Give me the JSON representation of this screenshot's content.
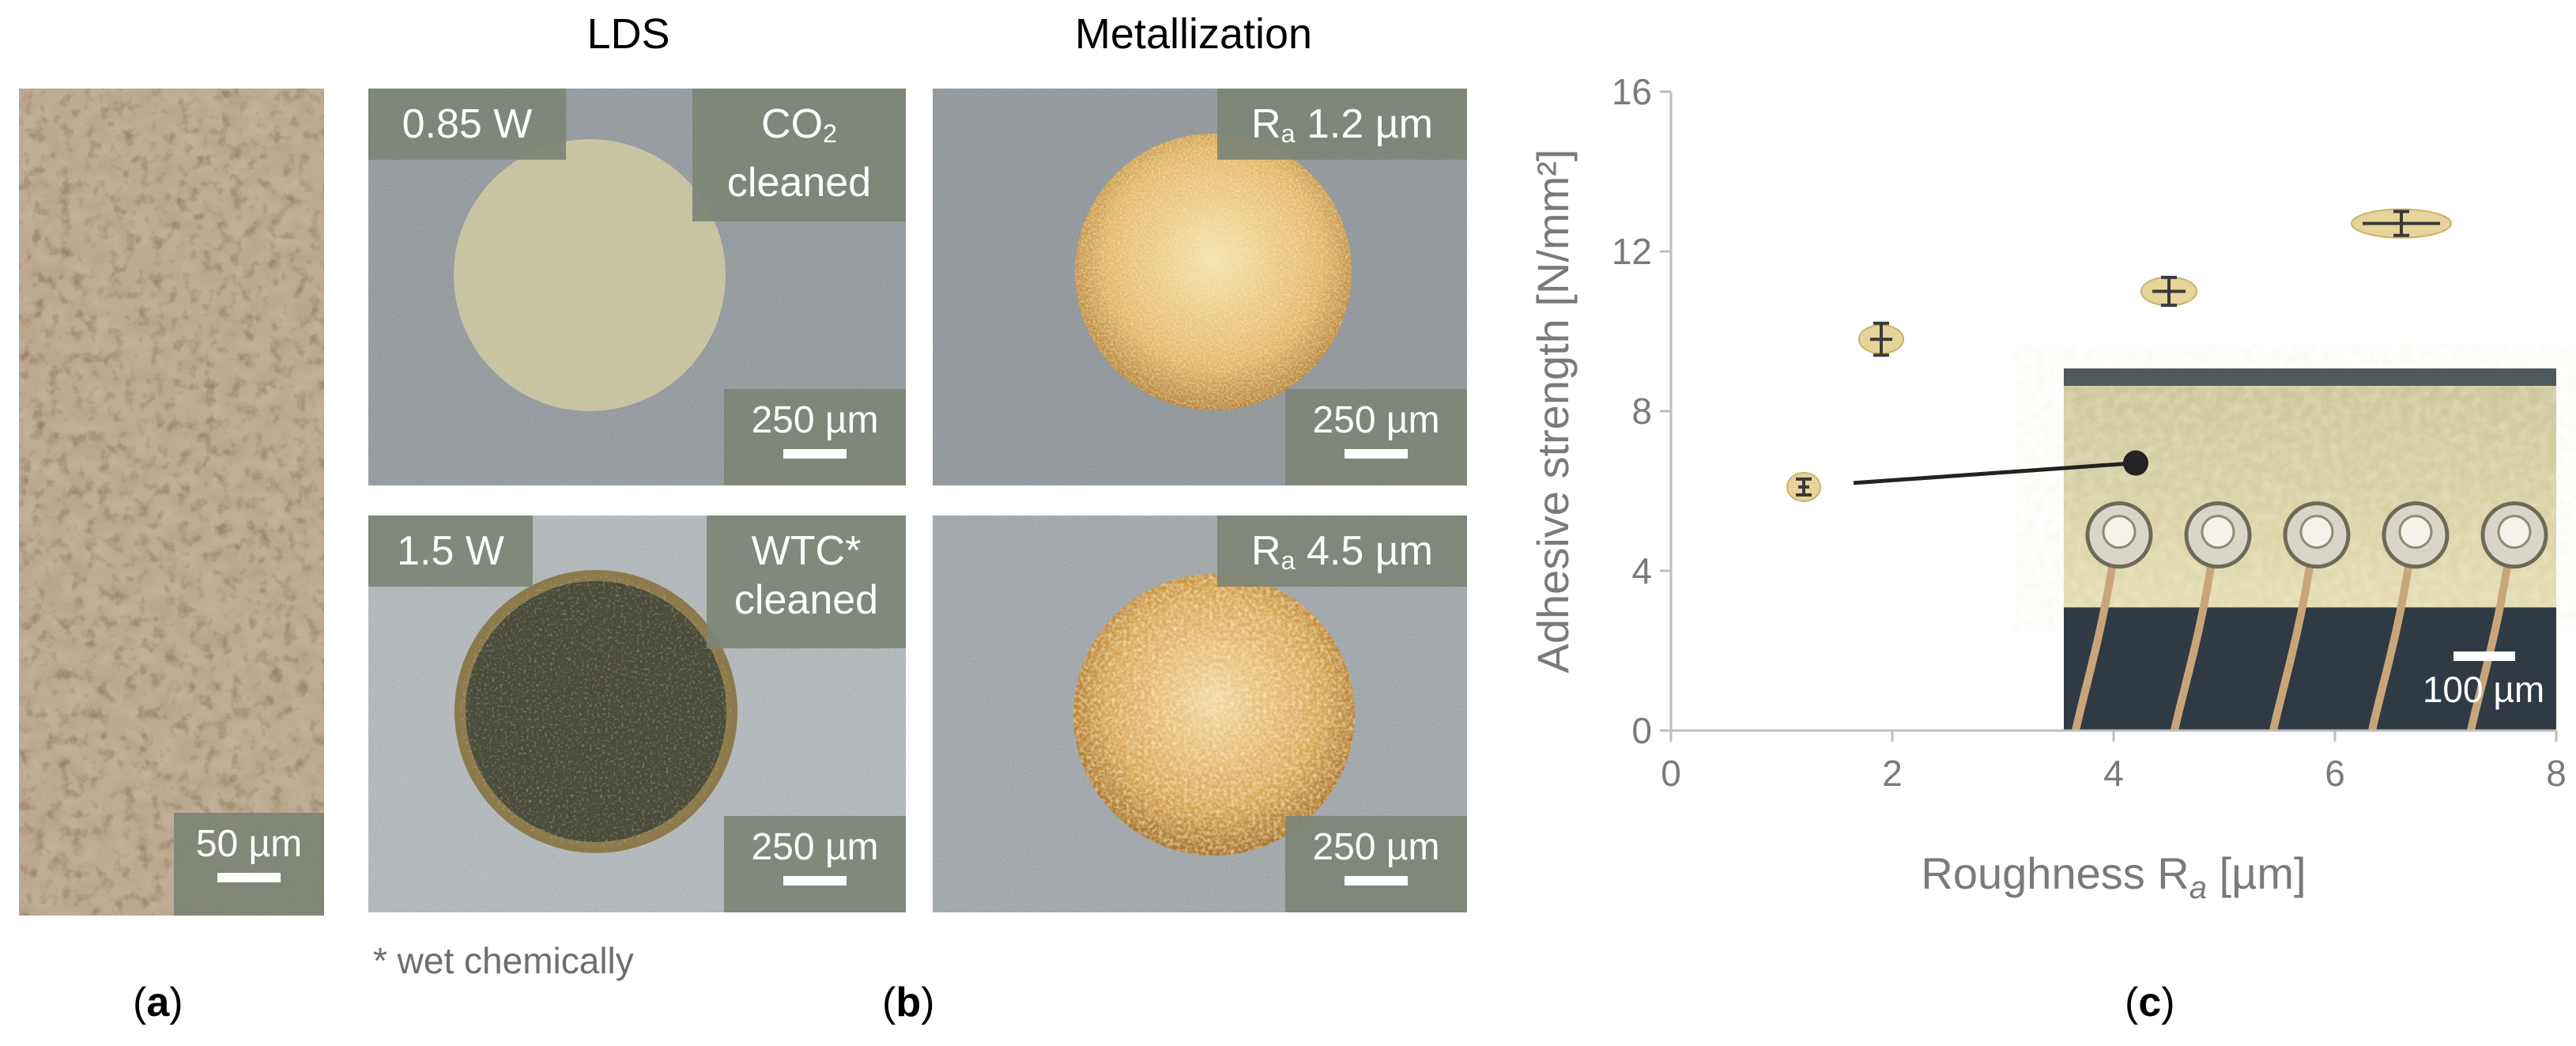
{
  "panel_a": {
    "scale": "50 µm",
    "caption_open": "(",
    "caption_letter": "a",
    "caption_close": ")"
  },
  "panel_b": {
    "header_left": "LDS",
    "header_right": "Metallization",
    "top_left_power": "0.85 W",
    "top_left_cleaning_prefix": "CO",
    "top_left_cleaning_sub": "2",
    "top_left_cleaning_suffix": "cleaned",
    "bottom_left_power": "1.5 W",
    "bottom_left_cleaning_line1": "WTC*",
    "bottom_left_cleaning_line2": "cleaned",
    "top_right_r": "R",
    "top_right_r_sub": "a",
    "top_right_value": " 1.2 µm",
    "bottom_right_r": "R",
    "bottom_right_r_sub": "a",
    "bottom_right_value": " 4.5 µm",
    "scale": "250 µm",
    "footnote": "* wet chemically",
    "caption_open": "(",
    "caption_letter": "b",
    "caption_close": ")"
  },
  "panel_c": {
    "inset_scale": "100 µm",
    "caption_open": "(",
    "caption_letter": "c",
    "caption_close": ")"
  },
  "chart_data": {
    "type": "scatter",
    "xlabel_main": "Roughness R",
    "xlabel_sub": "a",
    "xlabel_unit": " [µm]",
    "ylabel": "Adhesive strength [N/mm²]",
    "xlim": [
      0,
      8
    ],
    "ylim": [
      0,
      16
    ],
    "xticks": [
      0,
      2,
      4,
      6,
      8
    ],
    "yticks": [
      0,
      4,
      8,
      12,
      16
    ],
    "series": [
      {
        "name": "Adhesive strength",
        "points": [
          {
            "x": 1.2,
            "y": 6.1,
            "xerr": 0.05,
            "yerr": 0.2
          },
          {
            "x": 1.9,
            "y": 9.8,
            "xerr": 0.1,
            "yerr": 0.4
          },
          {
            "x": 4.5,
            "y": 11.0,
            "xerr": 0.15,
            "yerr": 0.35
          },
          {
            "x": 6.6,
            "y": 12.7,
            "xerr": 0.35,
            "yerr": 0.3
          }
        ]
      }
    ],
    "annotation": {
      "from_x": 1.65,
      "from_y": 6.2,
      "to_x": 4.2,
      "to_y": 6.7
    },
    "colors": {
      "marker": "#e6d49a",
      "marker_edge": "#c9b36a",
      "errbar": "#3a3a3a",
      "axis": "#bdbdbd",
      "text": "#7a7a7a"
    }
  }
}
